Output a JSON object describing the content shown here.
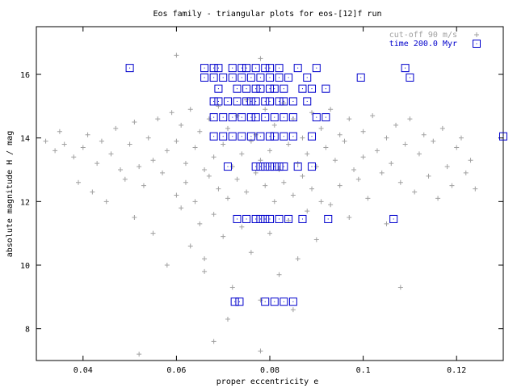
{
  "chart_data": {
    "type": "scatter",
    "title": "Eos family - triangular plots for eos-[12]f run",
    "xlabel": "proper eccentricity e",
    "ylabel": "absolute magnitude H / mag",
    "xlim": [
      0.03,
      0.13
    ],
    "ylim": [
      7.0,
      17.5
    ],
    "x_ticks": [
      0.04,
      0.06,
      0.08,
      0.1,
      0.12
    ],
    "x_tick_labels": [
      "0.04",
      "0.06",
      "0.08",
      "0.1",
      "0.12"
    ],
    "y_ticks": [
      8,
      10,
      12,
      14,
      16
    ],
    "y_tick_labels": [
      "8",
      "10",
      "12",
      "14",
      "16"
    ],
    "grid": false,
    "legend_position": "top-right",
    "series": [
      {
        "name": "cut-off 90 m/s",
        "marker": "plus",
        "color": "#a0a0a0",
        "points": [
          [
            0.032,
            13.9
          ],
          [
            0.034,
            13.6
          ],
          [
            0.036,
            13.8
          ],
          [
            0.035,
            14.2
          ],
          [
            0.038,
            13.4
          ],
          [
            0.039,
            12.6
          ],
          [
            0.04,
            13.7
          ],
          [
            0.041,
            14.1
          ],
          [
            0.042,
            12.3
          ],
          [
            0.043,
            13.2
          ],
          [
            0.044,
            13.9
          ],
          [
            0.045,
            12.0
          ],
          [
            0.046,
            13.5
          ],
          [
            0.047,
            14.3
          ],
          [
            0.048,
            13.0
          ],
          [
            0.049,
            12.7
          ],
          [
            0.05,
            13.8
          ],
          [
            0.051,
            11.5
          ],
          [
            0.051,
            14.5
          ],
          [
            0.052,
            13.1
          ],
          [
            0.053,
            12.5
          ],
          [
            0.054,
            14.0
          ],
          [
            0.055,
            13.3
          ],
          [
            0.055,
            11.0
          ],
          [
            0.056,
            14.6
          ],
          [
            0.057,
            12.9
          ],
          [
            0.058,
            13.6
          ],
          [
            0.058,
            10.0
          ],
          [
            0.059,
            14.8
          ],
          [
            0.06,
            12.2
          ],
          [
            0.06,
            13.9
          ],
          [
            0.061,
            11.8
          ],
          [
            0.061,
            14.4
          ],
          [
            0.062,
            13.2
          ],
          [
            0.062,
            12.6
          ],
          [
            0.063,
            10.6
          ],
          [
            0.063,
            14.9
          ],
          [
            0.064,
            13.7
          ],
          [
            0.064,
            12.0
          ],
          [
            0.065,
            11.3
          ],
          [
            0.065,
            14.2
          ],
          [
            0.066,
            13.0
          ],
          [
            0.066,
            9.8
          ],
          [
            0.067,
            12.8
          ],
          [
            0.067,
            14.6
          ],
          [
            0.068,
            13.4
          ],
          [
            0.068,
            11.6
          ],
          [
            0.069,
            12.4
          ],
          [
            0.069,
            15.0
          ],
          [
            0.07,
            13.8
          ],
          [
            0.07,
            10.9
          ],
          [
            0.071,
            12.1
          ],
          [
            0.071,
            14.3
          ],
          [
            0.072,
            13.1
          ],
          [
            0.072,
            9.3
          ],
          [
            0.073,
            12.7
          ],
          [
            0.073,
            14.7
          ],
          [
            0.074,
            13.5
          ],
          [
            0.074,
            11.2
          ],
          [
            0.075,
            12.3
          ],
          [
            0.075,
            15.2
          ],
          [
            0.076,
            13.9
          ],
          [
            0.076,
            10.4
          ],
          [
            0.077,
            12.9
          ],
          [
            0.077,
            14.1
          ],
          [
            0.078,
            13.3
          ],
          [
            0.078,
            8.9
          ],
          [
            0.079,
            12.5
          ],
          [
            0.079,
            14.9
          ],
          [
            0.08,
            13.6
          ],
          [
            0.08,
            11.0
          ],
          [
            0.081,
            12.0
          ],
          [
            0.081,
            14.4
          ],
          [
            0.082,
            13.0
          ],
          [
            0.082,
            9.7
          ],
          [
            0.083,
            12.6
          ],
          [
            0.083,
            15.1
          ],
          [
            0.084,
            13.8
          ],
          [
            0.084,
            11.4
          ],
          [
            0.085,
            12.2
          ],
          [
            0.085,
            14.6
          ],
          [
            0.086,
            13.2
          ],
          [
            0.086,
            10.2
          ],
          [
            0.087,
            12.8
          ],
          [
            0.087,
            14.0
          ],
          [
            0.088,
            13.5
          ],
          [
            0.088,
            11.7
          ],
          [
            0.089,
            12.4
          ],
          [
            0.089,
            14.8
          ],
          [
            0.09,
            13.1
          ],
          [
            0.09,
            10.8
          ],
          [
            0.091,
            12.0
          ],
          [
            0.091,
            14.3
          ],
          [
            0.092,
            13.7
          ],
          [
            0.093,
            11.9
          ],
          [
            0.093,
            14.9
          ],
          [
            0.094,
            13.3
          ],
          [
            0.095,
            12.5
          ],
          [
            0.095,
            14.1
          ],
          [
            0.096,
            13.9
          ],
          [
            0.097,
            11.5
          ],
          [
            0.097,
            14.6
          ],
          [
            0.098,
            13.0
          ],
          [
            0.099,
            12.7
          ],
          [
            0.1,
            14.2
          ],
          [
            0.1,
            13.4
          ],
          [
            0.101,
            12.1
          ],
          [
            0.102,
            14.7
          ],
          [
            0.103,
            13.6
          ],
          [
            0.104,
            12.9
          ],
          [
            0.105,
            14.0
          ],
          [
            0.105,
            11.3
          ],
          [
            0.106,
            13.2
          ],
          [
            0.107,
            14.4
          ],
          [
            0.108,
            12.6
          ],
          [
            0.108,
            9.3
          ],
          [
            0.109,
            13.8
          ],
          [
            0.11,
            14.6
          ],
          [
            0.111,
            12.3
          ],
          [
            0.112,
            13.5
          ],
          [
            0.113,
            14.1
          ],
          [
            0.114,
            12.8
          ],
          [
            0.115,
            13.9
          ],
          [
            0.116,
            12.1
          ],
          [
            0.117,
            14.3
          ],
          [
            0.118,
            13.1
          ],
          [
            0.119,
            12.5
          ],
          [
            0.12,
            13.7
          ],
          [
            0.121,
            14.0
          ],
          [
            0.122,
            12.9
          ],
          [
            0.123,
            13.3
          ],
          [
            0.124,
            12.4
          ],
          [
            0.06,
            16.6
          ],
          [
            0.078,
            16.5
          ],
          [
            0.052,
            7.2
          ],
          [
            0.068,
            7.6
          ],
          [
            0.078,
            7.3
          ],
          [
            0.071,
            8.3
          ],
          [
            0.085,
            8.6
          ],
          [
            0.066,
            10.2
          ]
        ]
      },
      {
        "name": "time 200.0 Myr",
        "marker": "square",
        "color": "#0000cc",
        "points": [
          [
            0.05,
            16.2
          ],
          [
            0.109,
            16.2
          ],
          [
            0.11,
            15.9
          ],
          [
            0.0995,
            15.9
          ],
          [
            0.13,
            14.05
          ],
          [
            0.1065,
            11.45
          ],
          [
            0.066,
            16.2
          ],
          [
            0.068,
            16.2
          ],
          [
            0.069,
            16.2
          ],
          [
            0.072,
            16.2
          ],
          [
            0.074,
            16.2
          ],
          [
            0.075,
            16.2
          ],
          [
            0.077,
            16.2
          ],
          [
            0.079,
            16.2
          ],
          [
            0.08,
            16.2
          ],
          [
            0.082,
            16.2
          ],
          [
            0.086,
            16.2
          ],
          [
            0.09,
            16.2
          ],
          [
            0.066,
            15.9
          ],
          [
            0.068,
            15.9
          ],
          [
            0.07,
            15.9
          ],
          [
            0.072,
            15.9
          ],
          [
            0.074,
            15.9
          ],
          [
            0.076,
            15.9
          ],
          [
            0.078,
            15.9
          ],
          [
            0.08,
            15.9
          ],
          [
            0.082,
            15.9
          ],
          [
            0.084,
            15.9
          ],
          [
            0.088,
            15.9
          ],
          [
            0.069,
            15.55
          ],
          [
            0.073,
            15.55
          ],
          [
            0.075,
            15.55
          ],
          [
            0.077,
            15.55
          ],
          [
            0.078,
            15.55
          ],
          [
            0.08,
            15.55
          ],
          [
            0.081,
            15.55
          ],
          [
            0.083,
            15.55
          ],
          [
            0.087,
            15.55
          ],
          [
            0.089,
            15.55
          ],
          [
            0.092,
            15.55
          ],
          [
            0.068,
            15.15
          ],
          [
            0.069,
            15.15
          ],
          [
            0.071,
            15.15
          ],
          [
            0.073,
            15.15
          ],
          [
            0.075,
            15.15
          ],
          [
            0.076,
            15.15
          ],
          [
            0.077,
            15.15
          ],
          [
            0.079,
            15.15
          ],
          [
            0.08,
            15.15
          ],
          [
            0.082,
            15.15
          ],
          [
            0.083,
            15.15
          ],
          [
            0.085,
            15.15
          ],
          [
            0.088,
            15.15
          ],
          [
            0.068,
            14.65
          ],
          [
            0.07,
            14.65
          ],
          [
            0.072,
            14.65
          ],
          [
            0.074,
            14.65
          ],
          [
            0.076,
            14.65
          ],
          [
            0.077,
            14.65
          ],
          [
            0.079,
            14.65
          ],
          [
            0.081,
            14.65
          ],
          [
            0.083,
            14.65
          ],
          [
            0.085,
            14.65
          ],
          [
            0.09,
            14.65
          ],
          [
            0.092,
            14.65
          ],
          [
            0.068,
            14.05
          ],
          [
            0.07,
            14.05
          ],
          [
            0.072,
            14.05
          ],
          [
            0.074,
            14.05
          ],
          [
            0.076,
            14.05
          ],
          [
            0.078,
            14.05
          ],
          [
            0.08,
            14.05
          ],
          [
            0.081,
            14.05
          ],
          [
            0.083,
            14.05
          ],
          [
            0.085,
            14.05
          ],
          [
            0.089,
            14.05
          ],
          [
            0.071,
            13.1
          ],
          [
            0.077,
            13.1
          ],
          [
            0.078,
            13.1
          ],
          [
            0.079,
            13.1
          ],
          [
            0.08,
            13.1
          ],
          [
            0.081,
            13.1
          ],
          [
            0.082,
            13.1
          ],
          [
            0.083,
            13.1
          ],
          [
            0.086,
            13.1
          ],
          [
            0.089,
            13.1
          ],
          [
            0.073,
            11.45
          ],
          [
            0.075,
            11.45
          ],
          [
            0.077,
            11.45
          ],
          [
            0.078,
            11.45
          ],
          [
            0.079,
            11.45
          ],
          [
            0.08,
            11.45
          ],
          [
            0.082,
            11.45
          ],
          [
            0.084,
            11.45
          ],
          [
            0.087,
            11.45
          ],
          [
            0.0925,
            11.45
          ],
          [
            0.0725,
            8.85
          ],
          [
            0.0735,
            8.85
          ],
          [
            0.079,
            8.85
          ],
          [
            0.081,
            8.85
          ],
          [
            0.083,
            8.85
          ],
          [
            0.085,
            8.85
          ]
        ]
      }
    ]
  }
}
